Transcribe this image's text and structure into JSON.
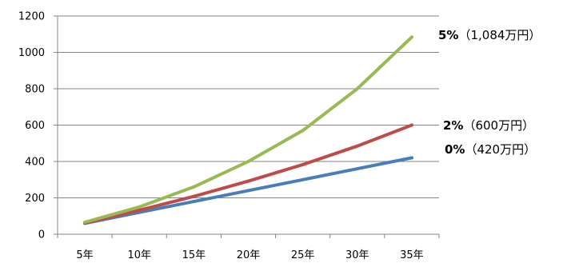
{
  "chart_data": {
    "type": "line",
    "categories": [
      "5年",
      "10年",
      "15年",
      "20年",
      "25年",
      "30年",
      "35年"
    ],
    "yticks": [
      0,
      200,
      400,
      600,
      800,
      1000,
      1200
    ],
    "ylim": [
      0,
      1200
    ],
    "grid": "horizontal",
    "series": [
      {
        "name": "0%（420万円）",
        "label_pct": "0%",
        "label_amount": "（420万円）",
        "color": "#4a7ebb",
        "values": [
          60,
          120,
          180,
          240,
          300,
          360,
          420
        ]
      },
      {
        "name": "2%（600万円）",
        "label_pct": "2%",
        "label_amount": "（600万円）",
        "color": "#be4b48",
        "values": [
          62,
          132,
          208,
          292,
          383,
          485,
          600
        ]
      },
      {
        "name": "5%（1,084万円）",
        "label_pct": "5%",
        "label_amount": "（1,084万円）",
        "color": "#98b954",
        "values": [
          66,
          150,
          260,
          400,
          570,
          800,
          1084
        ]
      }
    ]
  }
}
